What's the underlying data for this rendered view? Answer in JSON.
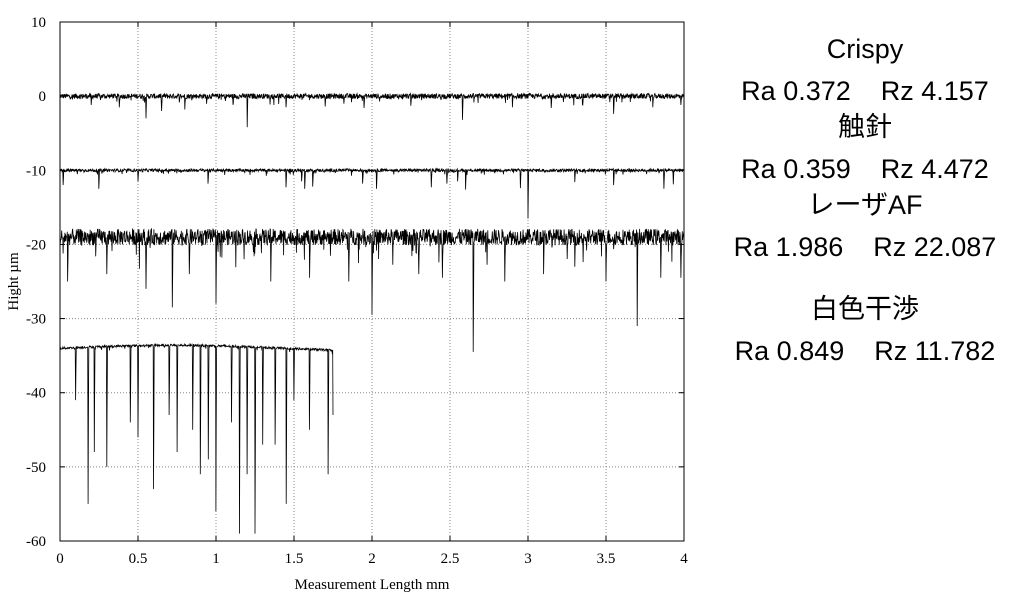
{
  "chart_data": {
    "type": "line",
    "title": "",
    "xlabel": "Measurement Length mm",
    "ylabel": "Hight µm",
    "xlim": [
      0,
      4
    ],
    "ylim": [
      -60,
      10
    ],
    "xticks": [
      "0",
      "0.5",
      "1",
      "1.5",
      "2",
      "2.5",
      "3",
      "3.5",
      "4"
    ],
    "yticks": [
      "10",
      "0",
      "-10",
      "-20",
      "-30",
      "-40",
      "-50",
      "-60"
    ],
    "grid": true,
    "series": [
      {
        "name": "Crispy",
        "ra": "Ra 0.372",
        "rz": "Rz 4.157",
        "baseline": 0,
        "x_range": [
          0,
          4
        ],
        "noise": 0.35,
        "dips": [
          [
            0.2,
            -1.2
          ],
          [
            0.38,
            -1.5
          ],
          [
            0.55,
            -3.0
          ],
          [
            0.65,
            -2.0
          ],
          [
            0.8,
            -1.8
          ],
          [
            1.2,
            -4.2
          ],
          [
            1.45,
            -1.5
          ],
          [
            1.7,
            -1.4
          ],
          [
            1.95,
            -1.6
          ],
          [
            2.25,
            -1.3
          ],
          [
            2.58,
            -3.2
          ],
          [
            2.9,
            -1.5
          ],
          [
            3.15,
            -1.6
          ],
          [
            3.35,
            -1.2
          ],
          [
            3.55,
            -2.4
          ],
          [
            3.8,
            -1.5
          ],
          [
            3.98,
            -1.2
          ]
        ]
      },
      {
        "name": "触針",
        "ra": "Ra 0.359",
        "rz": "Rz 4.472",
        "baseline": -10,
        "x_range": [
          0,
          4
        ],
        "noise": 0.2,
        "dips": [
          [
            0.02,
            -12
          ],
          [
            0.25,
            -12.5
          ],
          [
            0.5,
            -11.5
          ],
          [
            0.95,
            -11.8
          ],
          [
            1.45,
            -12.3
          ],
          [
            1.55,
            -11.5
          ],
          [
            1.57,
            -12.5
          ],
          [
            1.62,
            -12.2
          ],
          [
            1.94,
            -11.8
          ],
          [
            2.03,
            -12.5
          ],
          [
            2.38,
            -12.3
          ],
          [
            2.48,
            -11.8
          ],
          [
            2.55,
            -11.5
          ],
          [
            2.6,
            -12.6
          ],
          [
            2.95,
            -12.4
          ],
          [
            3.0,
            -16.5
          ],
          [
            3.3,
            -11.6
          ],
          [
            3.55,
            -12.0
          ],
          [
            3.87,
            -12.5
          ],
          [
            3.93,
            -11.9
          ]
        ]
      },
      {
        "name": "レーザAF",
        "ra": "Ra 1.986",
        "rz": "Rz 22.087",
        "baseline": -19,
        "x_range": [
          0,
          4
        ],
        "noise": 1.1,
        "dips": [
          [
            0.05,
            -25
          ],
          [
            0.3,
            -24
          ],
          [
            0.55,
            -26
          ],
          [
            0.72,
            -28.5
          ],
          [
            0.83,
            -24
          ],
          [
            1.0,
            -28
          ],
          [
            1.35,
            -25
          ],
          [
            1.6,
            -24.5
          ],
          [
            1.85,
            -25
          ],
          [
            2.0,
            -29.5
          ],
          [
            2.3,
            -24
          ],
          [
            2.45,
            -24.5
          ],
          [
            2.65,
            -34.5
          ],
          [
            2.85,
            -25
          ],
          [
            3.1,
            -24
          ],
          [
            3.3,
            -23
          ],
          [
            3.5,
            -25
          ],
          [
            3.7,
            -31
          ],
          [
            3.85,
            -24.5
          ],
          [
            3.98,
            -24.5
          ]
        ]
      },
      {
        "name": "白色干渉",
        "ra": "Ra 0.849",
        "rz": "Rz 11.782",
        "baseline": -34,
        "x_range": [
          0,
          1.75
        ],
        "noise": 0.15,
        "dips": [
          [
            0.1,
            -41
          ],
          [
            0.18,
            -55
          ],
          [
            0.22,
            -48
          ],
          [
            0.3,
            -50
          ],
          [
            0.45,
            -44
          ],
          [
            0.5,
            -46
          ],
          [
            0.6,
            -53
          ],
          [
            0.7,
            -43
          ],
          [
            0.75,
            -48
          ],
          [
            0.85,
            -45
          ],
          [
            0.9,
            -51
          ],
          [
            0.95,
            -49
          ],
          [
            1.0,
            -56
          ],
          [
            1.1,
            -44
          ],
          [
            1.15,
            -59
          ],
          [
            1.2,
            -51
          ],
          [
            1.25,
            -59
          ],
          [
            1.3,
            -47
          ],
          [
            1.38,
            -47
          ],
          [
            1.45,
            -55
          ],
          [
            1.5,
            -41
          ],
          [
            1.6,
            -45
          ],
          [
            1.72,
            -51
          ],
          [
            1.75,
            -43
          ]
        ]
      }
    ]
  },
  "legend": [
    {
      "name": "Crispy",
      "stats": "Ra 0.372    Rz 4.157"
    },
    {
      "name": "触針",
      "stats": "Ra 0.359    Rz 4.472"
    },
    {
      "name": "レーザAF",
      "stats": "Ra 1.986    Rz 22.087"
    },
    {
      "name": "白色干渉",
      "stats": "Ra 0.849    Rz 11.782"
    }
  ]
}
